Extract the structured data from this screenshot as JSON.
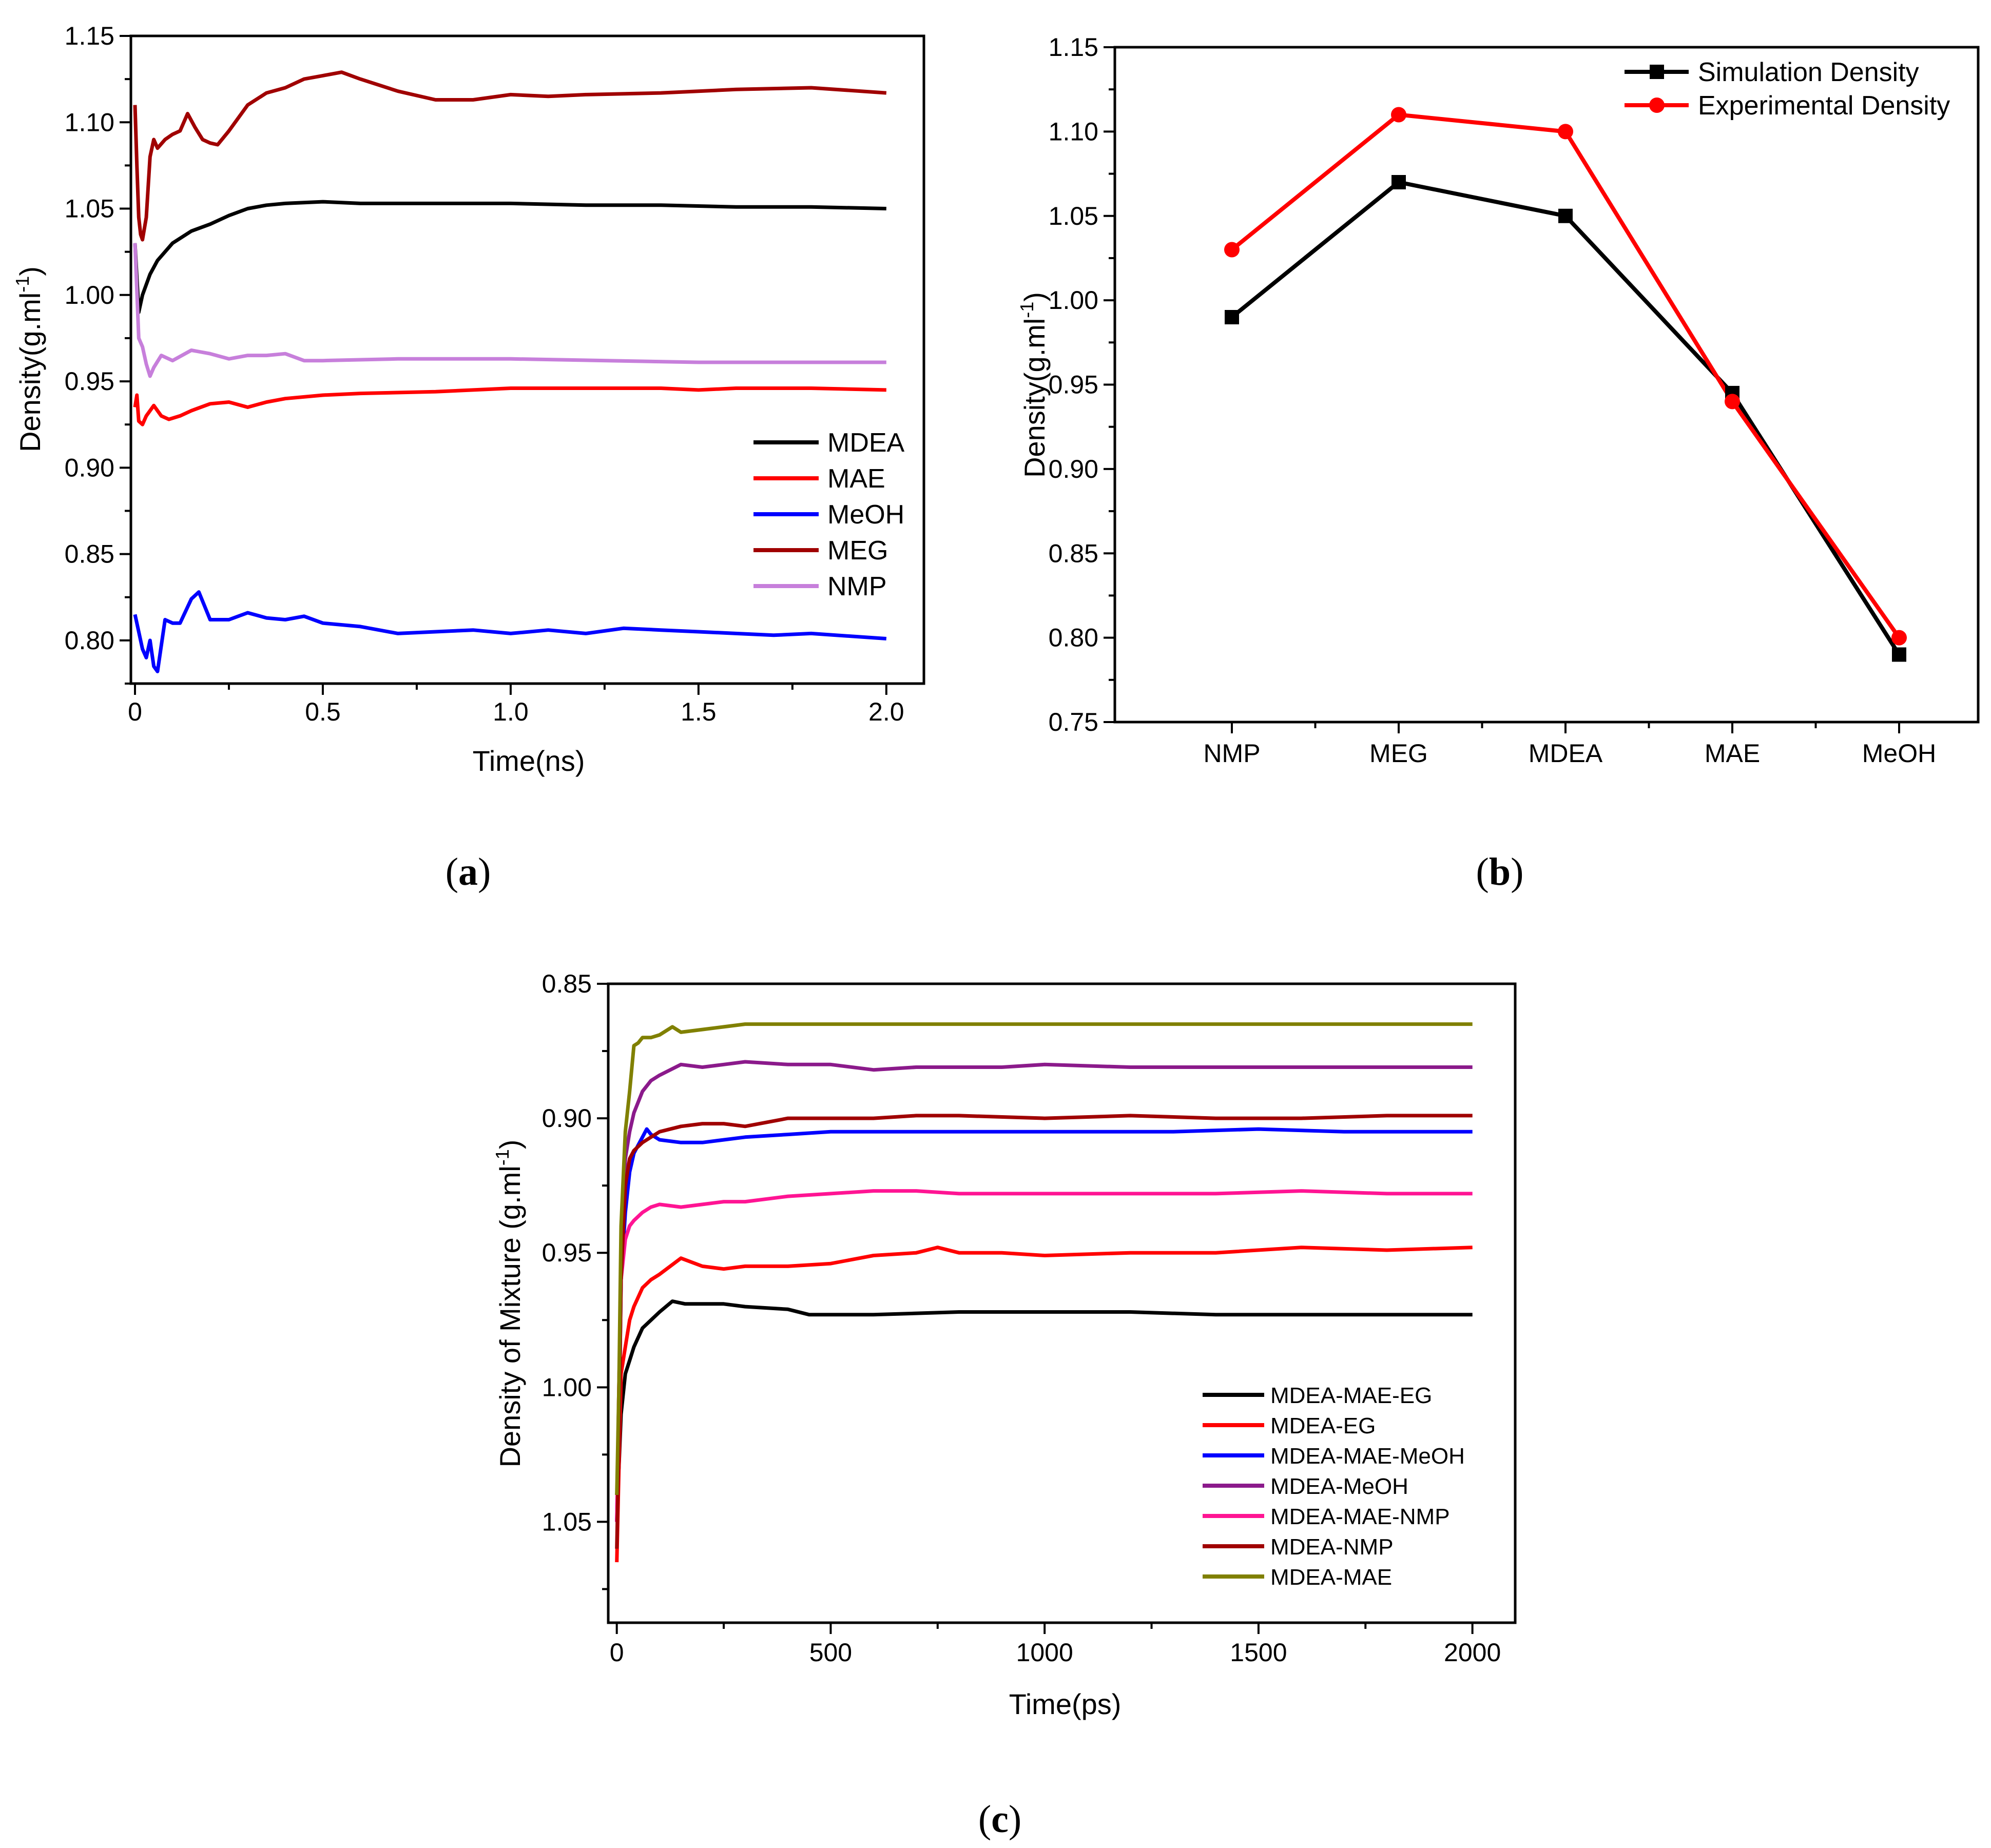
{
  "chart_data": [
    {
      "id": "a",
      "type": "line",
      "panel_label": "a",
      "xlabel": "Time(ns)",
      "ylabel": "Density(g.ml",
      "ylabel_sup": "-1",
      "ylabel_end": ")",
      "xlim": [
        0,
        2.1
      ],
      "ylim": [
        0.775,
        1.15
      ],
      "xticks": [
        0,
        0.5,
        1.0,
        1.5,
        2.0
      ],
      "xtick_labels": [
        "0",
        "0.5",
        "1.0",
        "1.5",
        "2.0"
      ],
      "yticks": [
        0.8,
        0.85,
        0.9,
        0.95,
        1.0,
        1.05,
        1.1,
        1.15
      ],
      "ytick_labels": [
        "0.80",
        "0.85",
        "0.90",
        "0.95",
        "1.00",
        "1.05",
        "1.10",
        "1.15"
      ],
      "legend_position": "right-middle",
      "series": [
        {
          "name": "MDEA",
          "color": "#000000",
          "x": [
            0,
            0.01,
            0.02,
            0.04,
            0.06,
            0.1,
            0.15,
            0.2,
            0.25,
            0.3,
            0.35,
            0.4,
            0.5,
            0.6,
            0.8,
            1.0,
            1.2,
            1.4,
            1.6,
            1.8,
            2.0
          ],
          "y": [
            1.03,
            0.99,
            1.0,
            1.012,
            1.02,
            1.03,
            1.037,
            1.041,
            1.046,
            1.05,
            1.052,
            1.053,
            1.054,
            1.053,
            1.053,
            1.053,
            1.052,
            1.052,
            1.051,
            1.051,
            1.05
          ]
        },
        {
          "name": "MAE",
          "color": "#ff0000",
          "x": [
            0,
            0.005,
            0.01,
            0.02,
            0.03,
            0.05,
            0.07,
            0.09,
            0.12,
            0.15,
            0.2,
            0.25,
            0.3,
            0.35,
            0.4,
            0.5,
            0.6,
            0.8,
            1.0,
            1.2,
            1.4,
            1.5,
            1.6,
            1.8,
            2.0
          ],
          "y": [
            0.935,
            0.942,
            0.927,
            0.925,
            0.93,
            0.936,
            0.93,
            0.928,
            0.93,
            0.933,
            0.937,
            0.938,
            0.935,
            0.938,
            0.94,
            0.942,
            0.943,
            0.944,
            0.946,
            0.946,
            0.946,
            0.945,
            0.946,
            0.946,
            0.945
          ]
        },
        {
          "name": "MeOH",
          "color": "#0000ff",
          "x": [
            0,
            0.01,
            0.02,
            0.03,
            0.04,
            0.05,
            0.06,
            0.08,
            0.1,
            0.12,
            0.15,
            0.17,
            0.2,
            0.25,
            0.3,
            0.35,
            0.4,
            0.45,
            0.5,
            0.6,
            0.7,
            0.8,
            0.9,
            1.0,
            1.1,
            1.2,
            1.3,
            1.4,
            1.5,
            1.6,
            1.7,
            1.8,
            2.0
          ],
          "y": [
            0.815,
            0.805,
            0.795,
            0.79,
            0.8,
            0.785,
            0.782,
            0.812,
            0.81,
            0.81,
            0.824,
            0.828,
            0.812,
            0.812,
            0.816,
            0.813,
            0.812,
            0.814,
            0.81,
            0.808,
            0.804,
            0.805,
            0.806,
            0.804,
            0.806,
            0.804,
            0.807,
            0.806,
            0.805,
            0.804,
            0.803,
            0.804,
            0.801
          ]
        },
        {
          "name": "MEG",
          "color": "#a00000",
          "x": [
            0,
            0.005,
            0.01,
            0.015,
            0.02,
            0.03,
            0.04,
            0.05,
            0.06,
            0.08,
            0.1,
            0.12,
            0.14,
            0.16,
            0.18,
            0.2,
            0.22,
            0.25,
            0.3,
            0.35,
            0.4,
            0.45,
            0.5,
            0.55,
            0.6,
            0.7,
            0.8,
            0.9,
            1.0,
            1.1,
            1.2,
            1.4,
            1.6,
            1.8,
            2.0
          ],
          "y": [
            1.11,
            1.075,
            1.045,
            1.035,
            1.032,
            1.045,
            1.08,
            1.09,
            1.085,
            1.09,
            1.093,
            1.095,
            1.105,
            1.097,
            1.09,
            1.088,
            1.087,
            1.095,
            1.11,
            1.117,
            1.12,
            1.125,
            1.127,
            1.129,
            1.125,
            1.118,
            1.113,
            1.113,
            1.116,
            1.115,
            1.116,
            1.117,
            1.119,
            1.12,
            1.117
          ]
        },
        {
          "name": "NMP",
          "color": "#c77fdb",
          "x": [
            0,
            0.01,
            0.02,
            0.03,
            0.04,
            0.05,
            0.07,
            0.1,
            0.15,
            0.2,
            0.25,
            0.3,
            0.35,
            0.4,
            0.45,
            0.5,
            0.7,
            1.0,
            1.5,
            2.0
          ],
          "y": [
            1.03,
            0.975,
            0.97,
            0.96,
            0.953,
            0.958,
            0.965,
            0.962,
            0.968,
            0.966,
            0.963,
            0.965,
            0.965,
            0.966,
            0.962,
            0.962,
            0.963,
            0.963,
            0.961,
            0.961
          ]
        }
      ]
    },
    {
      "id": "b",
      "type": "line",
      "panel_label": "b",
      "xlabel": "",
      "ylabel": "Density(g.ml",
      "ylabel_sup": "-1",
      "ylabel_end": ")",
      "categories": [
        "NMP",
        "MEG",
        "MDEA",
        "MAE",
        "MeOH"
      ],
      "ylim": [
        0.75,
        1.15
      ],
      "yticks": [
        0.75,
        0.8,
        0.85,
        0.9,
        0.95,
        1.0,
        1.05,
        1.1,
        1.15
      ],
      "ytick_labels": [
        "0.75",
        "0.80",
        "0.85",
        "0.90",
        "0.95",
        "1.00",
        "1.05",
        "1.10",
        "1.15"
      ],
      "legend_position": "top-right",
      "series": [
        {
          "name": "Simulation Density",
          "color": "#000000",
          "marker": "square",
          "values": [
            0.99,
            1.07,
            1.05,
            0.945,
            0.79
          ]
        },
        {
          "name": "Experimental Density",
          "color": "#ff0000",
          "marker": "circle",
          "values": [
            1.03,
            1.11,
            1.1,
            0.94,
            0.8
          ]
        }
      ]
    },
    {
      "id": "c",
      "type": "line",
      "panel_label": "c",
      "xlabel": "Time(ps)",
      "ylabel": "Density of Mixture (g.ml",
      "ylabel_sup": "-1",
      "ylabel_end": ")",
      "xlim": [
        -20,
        2100
      ],
      "ylim": [
        1.0875,
        0.85
      ],
      "y_inverted": true,
      "xticks": [
        0,
        500,
        1000,
        1500,
        2000
      ],
      "xtick_labels": [
        "0",
        "500",
        "1000",
        "1500",
        "2000"
      ],
      "yticks": [
        0.85,
        0.9,
        0.95,
        1.0,
        1.05
      ],
      "ytick_labels": [
        "0.85",
        "0.90",
        "0.95",
        "1.00",
        "1.05"
      ],
      "legend_position": "bottom-right",
      "series": [
        {
          "name": "MDEA-MAE-EG",
          "color": "#000000",
          "x": [
            0,
            5,
            10,
            20,
            30,
            40,
            60,
            80,
            100,
            130,
            160,
            200,
            250,
            300,
            400,
            450,
            500,
            600,
            800,
            1000,
            1200,
            1400,
            1600,
            1800,
            2000
          ],
          "y": [
            1.04,
            1.03,
            1.01,
            0.995,
            0.99,
            0.985,
            0.978,
            0.975,
            0.972,
            0.968,
            0.969,
            0.969,
            0.969,
            0.97,
            0.971,
            0.973,
            0.973,
            0.973,
            0.972,
            0.972,
            0.972,
            0.973,
            0.973,
            0.973,
            0.973
          ]
        },
        {
          "name": "MDEA-EG",
          "color": "#ff0000",
          "x": [
            0,
            5,
            10,
            20,
            30,
            40,
            60,
            80,
            100,
            150,
            200,
            250,
            300,
            400,
            500,
            600,
            700,
            750,
            800,
            900,
            1000,
            1200,
            1400,
            1600,
            1800,
            2000
          ],
          "y": [
            1.065,
            1.03,
            0.995,
            0.985,
            0.975,
            0.97,
            0.963,
            0.96,
            0.958,
            0.952,
            0.955,
            0.956,
            0.955,
            0.955,
            0.954,
            0.951,
            0.95,
            0.948,
            0.95,
            0.95,
            0.951,
            0.95,
            0.95,
            0.948,
            0.949,
            0.948
          ]
        },
        {
          "name": "MDEA-MAE-MeOH",
          "color": "#0000ff",
          "x": [
            0,
            5,
            10,
            20,
            30,
            40,
            50,
            60,
            70,
            80,
            100,
            150,
            200,
            300,
            400,
            500,
            700,
            900,
            1100,
            1300,
            1500,
            1700,
            2000
          ],
          "y": [
            1.05,
            1.02,
            0.96,
            0.935,
            0.92,
            0.913,
            0.91,
            0.907,
            0.904,
            0.906,
            0.908,
            0.909,
            0.909,
            0.907,
            0.906,
            0.905,
            0.905,
            0.905,
            0.905,
            0.905,
            0.904,
            0.905,
            0.905
          ]
        },
        {
          "name": "MDEA-MeOH",
          "color": "#8b1a8b",
          "x": [
            0,
            5,
            10,
            20,
            30,
            40,
            60,
            80,
            100,
            150,
            200,
            250,
            300,
            400,
            500,
            600,
            700,
            800,
            900,
            1000,
            1200,
            1400,
            1600,
            1800,
            2000
          ],
          "y": [
            1.05,
            1.0,
            0.96,
            0.915,
            0.905,
            0.898,
            0.89,
            0.886,
            0.884,
            0.88,
            0.881,
            0.88,
            0.879,
            0.88,
            0.88,
            0.882,
            0.881,
            0.881,
            0.881,
            0.88,
            0.881,
            0.881,
            0.881,
            0.881,
            0.881
          ]
        },
        {
          "name": "MDEA-MAE-NMP",
          "color": "#ff1493",
          "x": [
            0,
            5,
            10,
            20,
            30,
            40,
            60,
            80,
            100,
            150,
            200,
            250,
            300,
            400,
            500,
            600,
            700,
            800,
            1000,
            1200,
            1400,
            1600,
            1800,
            2000
          ],
          "y": [
            1.05,
            1.0,
            0.96,
            0.945,
            0.94,
            0.938,
            0.935,
            0.933,
            0.932,
            0.933,
            0.932,
            0.931,
            0.931,
            0.929,
            0.928,
            0.927,
            0.927,
            0.928,
            0.928,
            0.928,
            0.928,
            0.927,
            0.928,
            0.928
          ]
        },
        {
          "name": "MDEA-NMP",
          "color": "#a00000",
          "x": [
            0,
            5,
            10,
            20,
            30,
            40,
            60,
            80,
            100,
            150,
            200,
            250,
            300,
            400,
            500,
            600,
            700,
            800,
            1000,
            1200,
            1400,
            1600,
            1800,
            2000
          ],
          "y": [
            1.06,
            1.02,
            0.96,
            0.925,
            0.915,
            0.912,
            0.909,
            0.907,
            0.905,
            0.903,
            0.902,
            0.902,
            0.903,
            0.9,
            0.9,
            0.9,
            0.899,
            0.899,
            0.9,
            0.899,
            0.9,
            0.9,
            0.899,
            0.899
          ]
        },
        {
          "name": "MDEA-MAE",
          "color": "#808000",
          "x": [
            0,
            5,
            10,
            20,
            30,
            40,
            50,
            60,
            80,
            100,
            130,
            150,
            200,
            250,
            300,
            400,
            500,
            600,
            800,
            1000,
            1200,
            1400,
            1600,
            1800,
            2000
          ],
          "y": [
            1.04,
            1.0,
            0.94,
            0.905,
            0.89,
            0.873,
            0.872,
            0.87,
            0.87,
            0.869,
            0.866,
            0.868,
            0.867,
            0.866,
            0.865,
            0.865,
            0.865,
            0.865,
            0.865,
            0.865,
            0.865,
            0.865,
            0.865,
            0.865,
            0.865
          ]
        }
      ]
    }
  ]
}
